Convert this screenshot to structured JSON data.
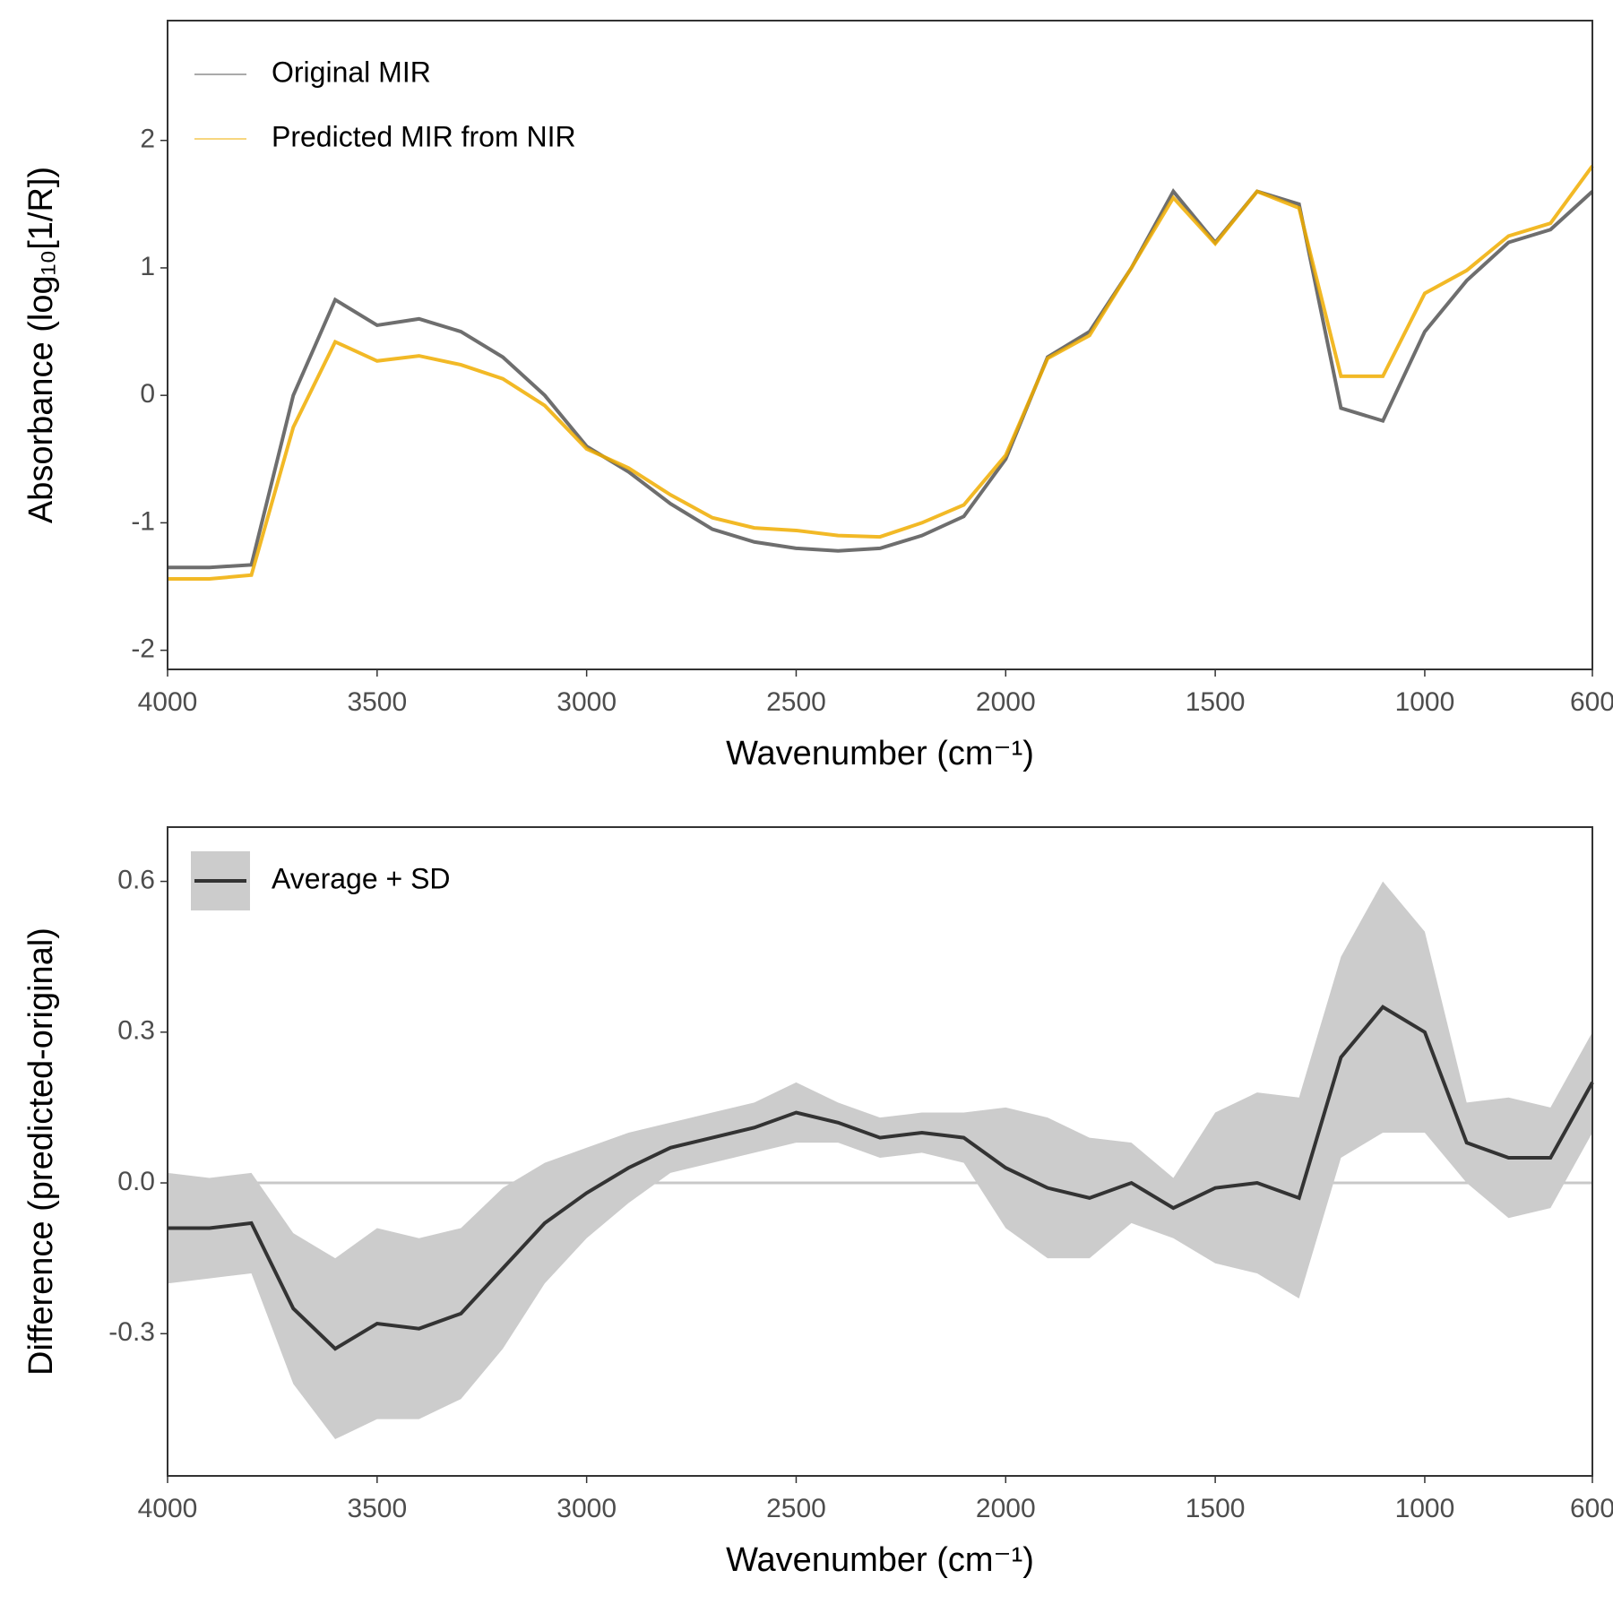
{
  "chart_data": [
    {
      "type": "line",
      "xlabel": "Wavenumber (cm⁻¹)",
      "ylabel": "Absorbance (log₁₀[1/R])",
      "x": [
        4000,
        3900,
        3800,
        3700,
        3600,
        3500,
        3400,
        3300,
        3200,
        3100,
        3000,
        2900,
        2800,
        2700,
        2600,
        2500,
        2400,
        2300,
        2200,
        2100,
        2000,
        1900,
        1800,
        1700,
        1600,
        1500,
        1400,
        1300,
        1200,
        1100,
        1000,
        900,
        800,
        700,
        600
      ],
      "xlim": [
        4000,
        600
      ],
      "xticks": [
        4000,
        3500,
        3000,
        2500,
        2000,
        1500,
        1000,
        600
      ],
      "ylim": [
        -2.15,
        2.94
      ],
      "yticks": [
        -2,
        -1,
        0,
        1,
        2
      ],
      "legend": "top-left",
      "series": [
        {
          "name": "Original MIR",
          "color": "#555555",
          "values": [
            -1.35,
            -1.35,
            -1.33,
            0.0,
            0.75,
            0.55,
            0.6,
            0.5,
            0.3,
            0.0,
            -0.4,
            -0.6,
            -0.85,
            -1.05,
            -1.15,
            -1.2,
            -1.22,
            -1.2,
            -1.1,
            -0.95,
            -0.5,
            0.3,
            0.5,
            1.0,
            1.6,
            1.2,
            1.6,
            1.5,
            -0.1,
            -0.2,
            0.5,
            0.9,
            1.2,
            1.3,
            1.6
          ]
        },
        {
          "name": "Predicted MIR from NIR",
          "color": "#f0ad00",
          "values": [
            -1.44,
            -1.44,
            -1.41,
            -0.25,
            0.42,
            0.27,
            0.31,
            0.24,
            0.13,
            -0.08,
            -0.42,
            -0.57,
            -0.78,
            -0.96,
            -1.04,
            -1.06,
            -1.1,
            -1.11,
            -1.0,
            -0.86,
            -0.47,
            0.29,
            0.47,
            1.0,
            1.55,
            1.19,
            1.6,
            1.47,
            0.15,
            0.15,
            0.8,
            0.98,
            1.25,
            1.35,
            1.8
          ]
        }
      ]
    },
    {
      "type": "line",
      "xlabel": "Wavenumber (cm⁻¹)",
      "ylabel": "Difference (predicted-original)",
      "x": [
        4000,
        3900,
        3800,
        3700,
        3600,
        3500,
        3400,
        3300,
        3200,
        3100,
        3000,
        2900,
        2800,
        2700,
        2600,
        2500,
        2400,
        2300,
        2200,
        2100,
        2000,
        1900,
        1800,
        1700,
        1600,
        1500,
        1400,
        1300,
        1200,
        1100,
        1000,
        900,
        800,
        700,
        600
      ],
      "xlim": [
        4000,
        600
      ],
      "xticks": [
        4000,
        3500,
        3000,
        2500,
        2000,
        1500,
        1000,
        600
      ],
      "ylim": [
        -0.583,
        0.708
      ],
      "yticks": [
        {
          "value": -0.3,
          "label": "-0.3"
        },
        {
          "value": 0,
          "label": "0.0"
        },
        0.3,
        0.6
      ],
      "reference_line": 0,
      "legend": "top-left",
      "series": [
        {
          "name": "Average + SD",
          "color": "#333333",
          "band_color": "#cccccc",
          "values": [
            -0.09,
            -0.09,
            -0.08,
            -0.25,
            -0.33,
            -0.28,
            -0.29,
            -0.26,
            -0.17,
            -0.08,
            -0.02,
            0.03,
            0.07,
            0.09,
            0.11,
            0.14,
            0.12,
            0.09,
            0.1,
            0.09,
            0.03,
            -0.01,
            -0.03,
            0.0,
            -0.05,
            -0.01,
            0.0,
            -0.03,
            0.25,
            0.35,
            0.3,
            0.08,
            0.05,
            0.05,
            0.2
          ],
          "errors": [
            0.11,
            0.1,
            0.1,
            0.15,
            0.18,
            0.19,
            0.18,
            0.17,
            0.16,
            0.12,
            0.09,
            0.07,
            0.05,
            0.05,
            0.05,
            0.06,
            0.04,
            0.04,
            0.04,
            0.05,
            0.12,
            0.14,
            0.12,
            0.08,
            0.06,
            0.15,
            0.18,
            0.2,
            0.2,
            0.25,
            0.2,
            0.08,
            0.12,
            0.1,
            0.1
          ]
        }
      ]
    }
  ]
}
